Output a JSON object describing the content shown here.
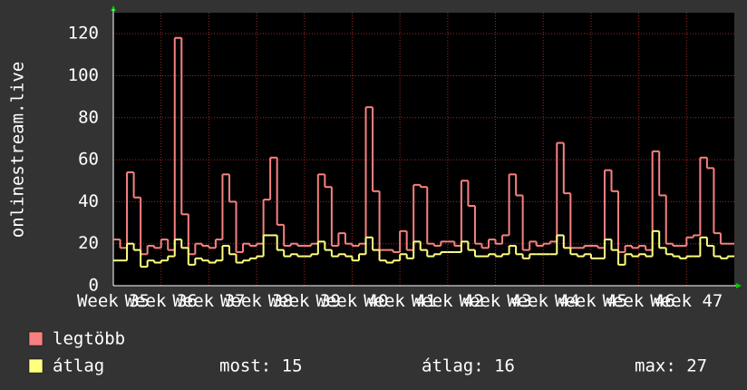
{
  "chart_data": {
    "type": "line",
    "y_label": "onlinestream.live",
    "ylim": [
      0,
      130
    ],
    "yticks": [
      0,
      20,
      40,
      60,
      80,
      100,
      120
    ],
    "xlim": [
      0,
      91
    ],
    "xticks": [
      {
        "value": 0,
        "label": "Week 35"
      },
      {
        "value": 7,
        "label": "Week 36"
      },
      {
        "value": 14,
        "label": "Week 37"
      },
      {
        "value": 21,
        "label": "Week 38"
      },
      {
        "value": 28,
        "label": "Week 39"
      },
      {
        "value": 35,
        "label": "Week 40"
      },
      {
        "value": 42,
        "label": "Week 41"
      },
      {
        "value": 49,
        "label": "Week 42"
      },
      {
        "value": 56,
        "label": "Week 43"
      },
      {
        "value": 63,
        "label": "Week 44"
      },
      {
        "value": 70,
        "label": "Week 45"
      },
      {
        "value": 77,
        "label": "Week 46"
      },
      {
        "value": 84,
        "label": "Week 47"
      }
    ],
    "grid": true,
    "series": [
      {
        "name": "legtöbb",
        "color": "#f88080",
        "values": [
          22,
          18,
          54,
          42,
          15,
          19,
          18,
          22,
          17,
          118,
          34,
          15,
          20,
          19,
          18,
          22,
          53,
          40,
          16,
          20,
          19,
          20,
          41,
          61,
          29,
          19,
          20,
          19,
          19,
          20,
          53,
          47,
          19,
          25,
          20,
          19,
          20,
          85,
          45,
          17,
          17,
          16,
          26,
          17,
          48,
          47,
          20,
          19,
          21,
          21,
          19,
          50,
          38,
          20,
          18,
          22,
          20,
          24,
          53,
          43,
          17,
          21,
          19,
          20,
          21,
          68,
          44,
          18,
          18,
          19,
          19,
          18,
          55,
          45,
          16,
          19,
          18,
          19,
          17,
          64,
          43,
          20,
          19,
          19,
          23,
          24,
          61,
          56,
          25,
          20,
          20
        ]
      },
      {
        "name": "átlag",
        "color": "#ffff80",
        "values": [
          12,
          12,
          20,
          17,
          9,
          12,
          11,
          12,
          14,
          22,
          18,
          10,
          13,
          12,
          11,
          12,
          19,
          15,
          11,
          12,
          13,
          14,
          24,
          24,
          17,
          14,
          15,
          14,
          14,
          15,
          21,
          17,
          14,
          15,
          14,
          12,
          15,
          23,
          17,
          12,
          11,
          12,
          15,
          13,
          21,
          17,
          14,
          15,
          16,
          16,
          16,
          21,
          17,
          14,
          14,
          15,
          14,
          15,
          19,
          15,
          13,
          15,
          15,
          15,
          15,
          24,
          18,
          15,
          14,
          15,
          13,
          13,
          22,
          17,
          10,
          15,
          14,
          15,
          14,
          26,
          18,
          15,
          14,
          13,
          14,
          14,
          23,
          19,
          14,
          13,
          14
        ]
      }
    ],
    "stats": [
      "most: 15",
      "átlag: 16",
      "max: 27"
    ]
  }
}
